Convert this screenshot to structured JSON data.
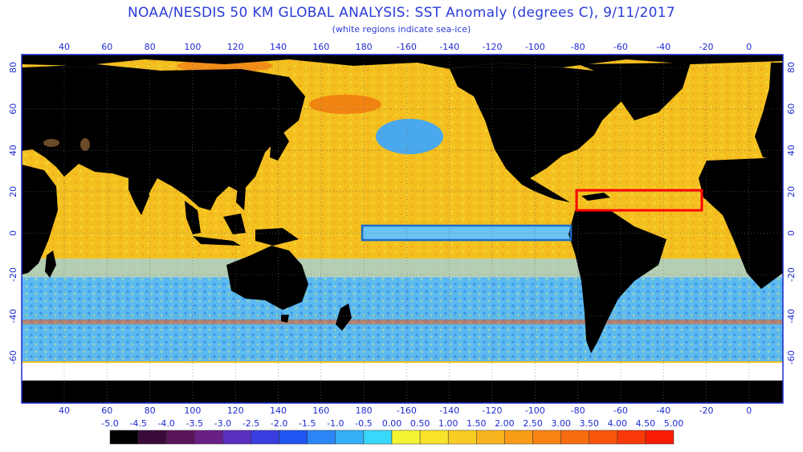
{
  "title": "NOAA/NESDIS 50 KM GLOBAL ANALYSIS: SST Anomaly (degrees C), 9/11/2017",
  "subtitle": "(white regions indicate sea-ice)",
  "lon_labels": [
    "40",
    "60",
    "80",
    "100",
    "120",
    "140",
    "160",
    "180",
    "-160",
    "-140",
    "-120",
    "-100",
    "-80",
    "-60",
    "-40",
    "-20",
    "0"
  ],
  "lat_labels": [
    "80",
    "60",
    "40",
    "20",
    "0",
    "-20",
    "-40",
    "-60"
  ],
  "colorbar": {
    "labels": [
      "-5.0",
      "-4.5",
      "-4.0",
      "-3.5",
      "-3.0",
      "-2.5",
      "-2.0",
      "-1.5",
      "-1.0",
      "-0.5",
      "0.00",
      "0.50",
      "1.00",
      "1.50",
      "2.00",
      "2.50",
      "3.00",
      "3.50",
      "4.00",
      "4.50",
      "5.00"
    ],
    "colors": [
      "#000000",
      "#3a0a3a",
      "#5a1458",
      "#6a1f86",
      "#5a2ec0",
      "#3a3de0",
      "#1f55f0",
      "#2a86f4",
      "#33b0f6",
      "#38d8fa",
      "#f4f432",
      "#f8e22a",
      "#f8cc24",
      "#f8b41e",
      "#f89c18",
      "#f88414",
      "#f86c10",
      "#f8540c",
      "#f83808",
      "#f81c04"
    ]
  },
  "annotations": {
    "red_box_color": "#ff0000",
    "blue_box_color": "#1e6cc8"
  },
  "colors": {
    "land": "#000000",
    "ocean_warm": "#f4c020",
    "ocean_cool": "#56b8f0",
    "sea_ice": "#ffffff",
    "frame": "#1f2bd0"
  }
}
